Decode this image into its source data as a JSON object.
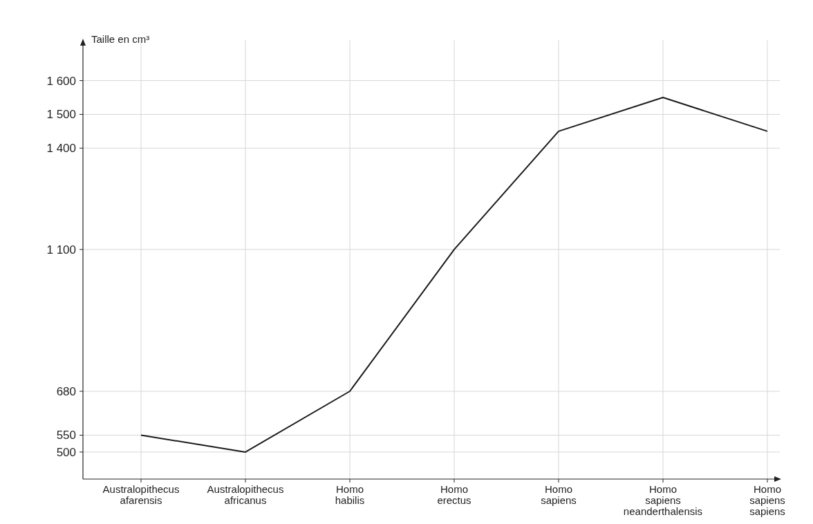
{
  "chart_data": {
    "type": "line",
    "ylabel": "Taille en cm³",
    "categories": [
      "Australopithecus afarensis",
      "Australopithecus africanus",
      "Homo habilis",
      "Homo erectus",
      "Homo sapiens",
      "Homo sapiens neanderthalensis",
      "Homo sapiens sapiens"
    ],
    "series": [
      {
        "color": "#1a1a1a",
        "values": [
          550,
          500,
          680,
          1100,
          1450,
          1550,
          1450
        ]
      }
    ],
    "ylim": [
      420,
      1720
    ],
    "yticks": [
      {
        "value": 500,
        "label": "500"
      },
      {
        "value": 550,
        "label": "550"
      },
      {
        "value": 680,
        "label": "680"
      },
      {
        "value": 1100,
        "label": "1 100"
      },
      {
        "value": 1400,
        "label": "1 400"
      },
      {
        "value": 1500,
        "label": "1 500"
      },
      {
        "value": 1600,
        "label": "1 600"
      }
    ],
    "grid": true,
    "marker": "none",
    "line_style": "solid"
  }
}
